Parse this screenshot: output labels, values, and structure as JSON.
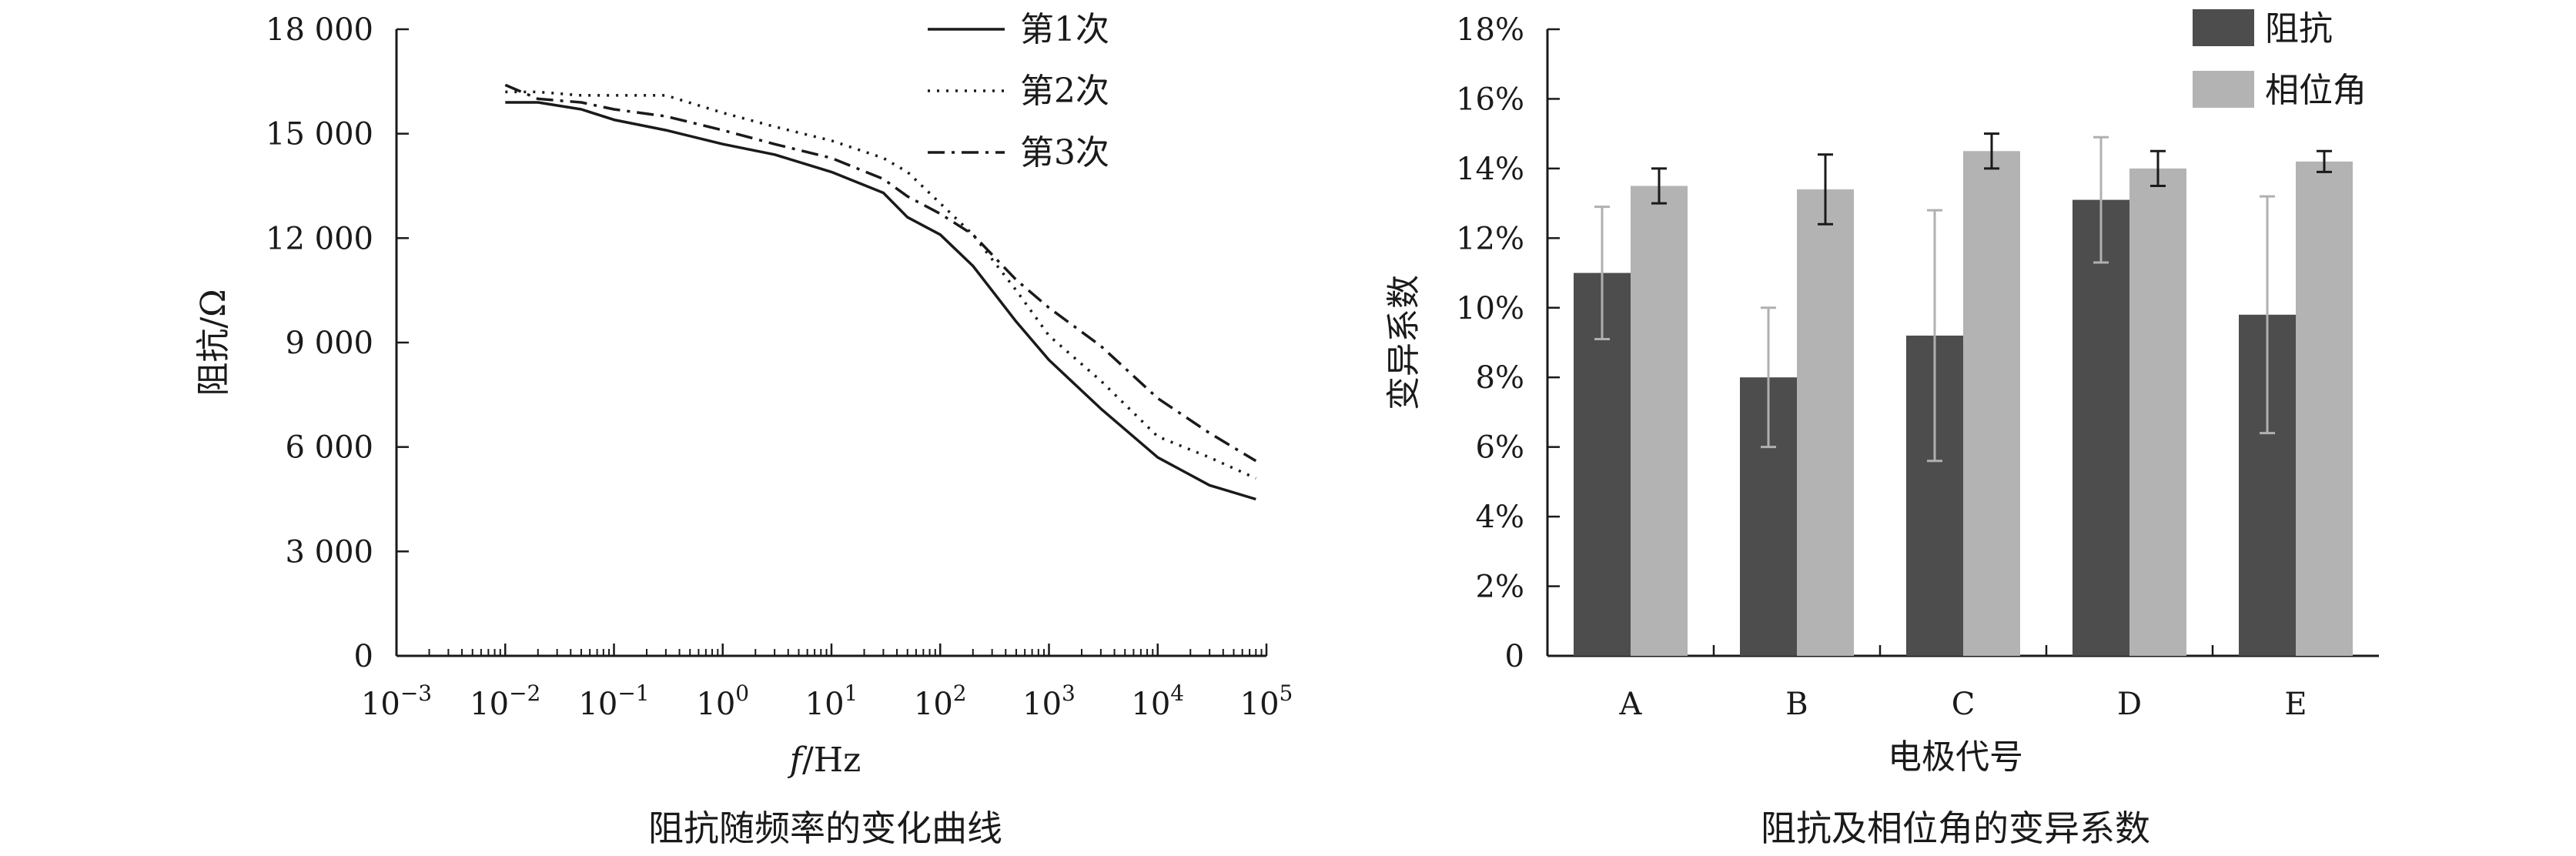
{
  "chart_data": [
    {
      "type": "line",
      "caption": "阻抗随频率的变化曲线",
      "xlabel_italic": "f",
      "xlabel_rest": "/Hz",
      "ylabel": "阻抗/Ω",
      "xscale": "log",
      "xlim": [
        0.001,
        100000
      ],
      "ylim": [
        0,
        18000
      ],
      "x_ticks": [
        {
          "base": "10",
          "exp": "−3"
        },
        {
          "base": "10",
          "exp": "−2"
        },
        {
          "base": "10",
          "exp": "−1"
        },
        {
          "base": "10",
          "exp": "0"
        },
        {
          "base": "10",
          "exp": "1"
        },
        {
          "base": "10",
          "exp": "2"
        },
        {
          "base": "10",
          "exp": "3"
        },
        {
          "base": "10",
          "exp": "4"
        },
        {
          "base": "10",
          "exp": "5"
        }
      ],
      "y_ticks": [
        "0",
        "3 000",
        "6 000",
        "9 000",
        "12 000",
        "15 000",
        "18 000"
      ],
      "legend_position": "top-right",
      "series": [
        {
          "name": "第1次",
          "style": "solid",
          "x": [
            0.01,
            0.02,
            0.05,
            0.1,
            0.3,
            1,
            3,
            10,
            30,
            50,
            100,
            200,
            500,
            1000,
            3000,
            10000,
            30000,
            80000
          ],
          "y": [
            15900,
            15900,
            15700,
            15400,
            15100,
            14700,
            14400,
            13900,
            13300,
            12600,
            12100,
            11200,
            9600,
            8500,
            7100,
            5700,
            4900,
            4500
          ]
        },
        {
          "name": "第2次",
          "style": "dotted",
          "x": [
            0.01,
            0.02,
            0.05,
            0.1,
            0.3,
            1,
            3,
            10,
            30,
            50,
            100,
            200,
            500,
            1000,
            3000,
            10000,
            30000,
            80000
          ],
          "y": [
            16200,
            16200,
            16100,
            16100,
            16100,
            15600,
            15200,
            14800,
            14300,
            13900,
            13000,
            12100,
            10500,
            9200,
            7900,
            6300,
            5700,
            5100
          ]
        },
        {
          "name": "第3次",
          "style": "dashdot",
          "x": [
            0.01,
            0.02,
            0.05,
            0.1,
            0.3,
            1,
            3,
            10,
            30,
            50,
            100,
            200,
            500,
            1000,
            3000,
            10000,
            30000,
            80000
          ],
          "y": [
            16400,
            16000,
            15900,
            15700,
            15500,
            15100,
            14700,
            14300,
            13700,
            13200,
            12700,
            12100,
            10800,
            10000,
            8900,
            7400,
            6400,
            5600
          ]
        }
      ]
    },
    {
      "type": "bar",
      "caption": "阻抗及相位角的变异系数",
      "xlabel": "电极代号",
      "ylabel": "变异系数",
      "ylim": [
        0,
        18
      ],
      "y_ticks": [
        "0",
        "2%",
        "4%",
        "6%",
        "8%",
        "10%",
        "12%",
        "14%",
        "16%",
        "18%"
      ],
      "categories": [
        "A",
        "B",
        "C",
        "D",
        "E"
      ],
      "legend_position": "top-right",
      "series": [
        {
          "name": "阻抗",
          "color": "#4d4d4d",
          "error_color": "#b0b0b0",
          "values": [
            11.0,
            8.0,
            9.2,
            13.1,
            9.8
          ],
          "errors": [
            1.9,
            2.0,
            3.6,
            1.8,
            3.4
          ]
        },
        {
          "name": "相位角",
          "color": "#b3b3b3",
          "error_color": "#1a1a1a",
          "values": [
            13.5,
            13.4,
            14.5,
            14.0,
            14.2
          ],
          "errors": [
            0.5,
            1.0,
            0.5,
            0.5,
            0.3
          ]
        }
      ]
    }
  ]
}
